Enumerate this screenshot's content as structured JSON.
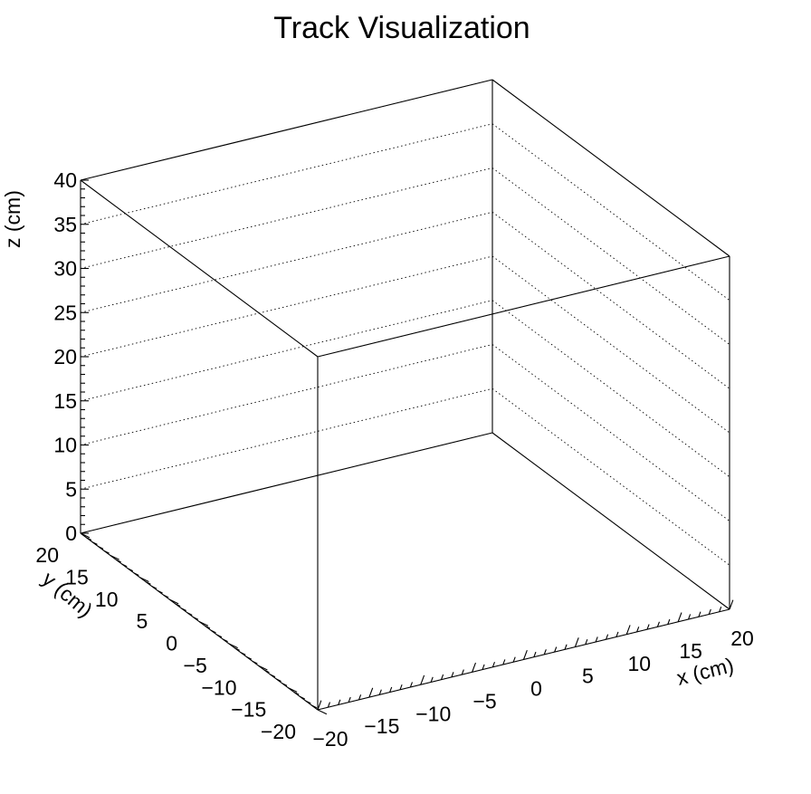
{
  "chart_data": {
    "type": "scatter3d",
    "title": "Track Visualization",
    "xlabel": "x (cm)",
    "ylabel": "y (cm)",
    "zlabel": "z (cm)",
    "xlim": [
      -20,
      20
    ],
    "ylim": [
      -20,
      20
    ],
    "zlim": [
      0,
      40
    ],
    "x_ticks": [
      "−20",
      "−15",
      "−10",
      "−5",
      "0",
      "5",
      "10",
      "15",
      "20"
    ],
    "y_ticks": [
      "−20",
      "−15",
      "−10",
      "−5",
      "0",
      "5",
      "10",
      "15",
      "20"
    ],
    "z_ticks": [
      "0",
      "5",
      "10",
      "15",
      "20",
      "25",
      "30",
      "35",
      "40"
    ],
    "series": [],
    "grid": true
  },
  "colors": {
    "frame": "#000000",
    "background": "#ffffff"
  }
}
